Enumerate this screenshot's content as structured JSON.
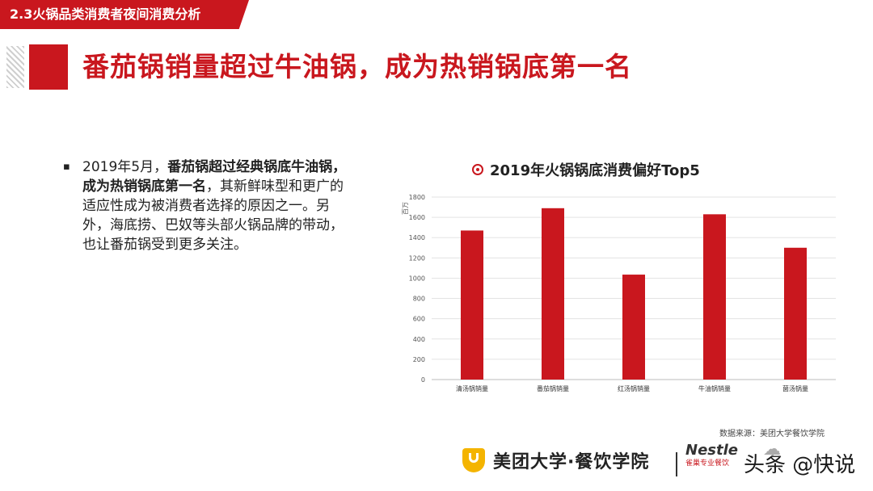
{
  "section_tag": "2.3火锅品类消费者夜间消费分析",
  "headline": "番茄锅销量超过牛油锅，成为热销锅底第一名",
  "bullet": {
    "marker": "▪",
    "lead": "2019年5月，",
    "bold": "番茄锅超过经典锅底牛油锅，成为热销锅底第一名",
    "rest": "，其新鲜味型和更广的适应性成为被消费者选择的原因之一。另外，海底捞、巴奴等头部火锅品牌的带动，也让番茄锅受到更多关注。"
  },
  "chart_title": "2019年火锅锅底消费偏好Top5",
  "chart_data": {
    "type": "bar",
    "ylabel": "百万",
    "ylim": [
      0,
      1800
    ],
    "yticks": [
      0,
      200,
      400,
      600,
      800,
      1000,
      1200,
      1400,
      1600,
      1800
    ],
    "categories": [
      "清汤锅销量",
      "番茄锅销量",
      "红汤锅销量",
      "牛油锅销量",
      "菌汤锅量"
    ],
    "values": [
      1470,
      1690,
      1035,
      1630,
      1300
    ],
    "bar_color": "#c9171e",
    "grid": true
  },
  "source": "数据来源：美团大学餐饮学院",
  "footer": {
    "org_name": "美团大学·餐饮学院",
    "partner_brand": "Nestle",
    "partner_sub": "雀巢专业餐饮",
    "watermark": "头条 @快说"
  },
  "colors": {
    "accent": "#c9171e"
  },
  "icons": {
    "org_logo": "shield-logo-icon",
    "title_marker": "target-icon",
    "watermark": "chat-bubble-icon"
  }
}
